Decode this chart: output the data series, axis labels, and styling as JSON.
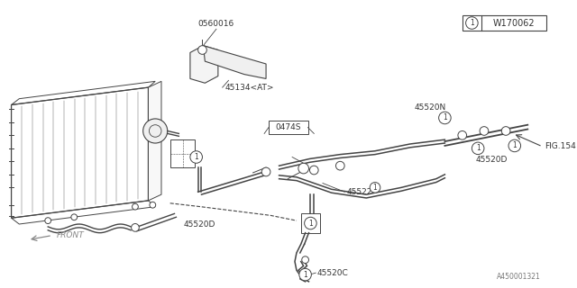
{
  "bg_color": "#ffffff",
  "lc": "#444444",
  "tc": "#333333",
  "fig_width": 6.4,
  "fig_height": 3.2,
  "dpi": 100,
  "labels": {
    "part_num": "W170062",
    "l0560016": "0560016",
    "l45134": "45134<AT>",
    "l0474S": "0474S",
    "l45520N": "45520N",
    "lFIG154": "FIG.154",
    "l45520D_r": "45520D",
    "l45522": "45522",
    "l45520C": "45520C",
    "l45520D_l": "45520D",
    "front": "FRONT",
    "bottom": "A450001321"
  }
}
